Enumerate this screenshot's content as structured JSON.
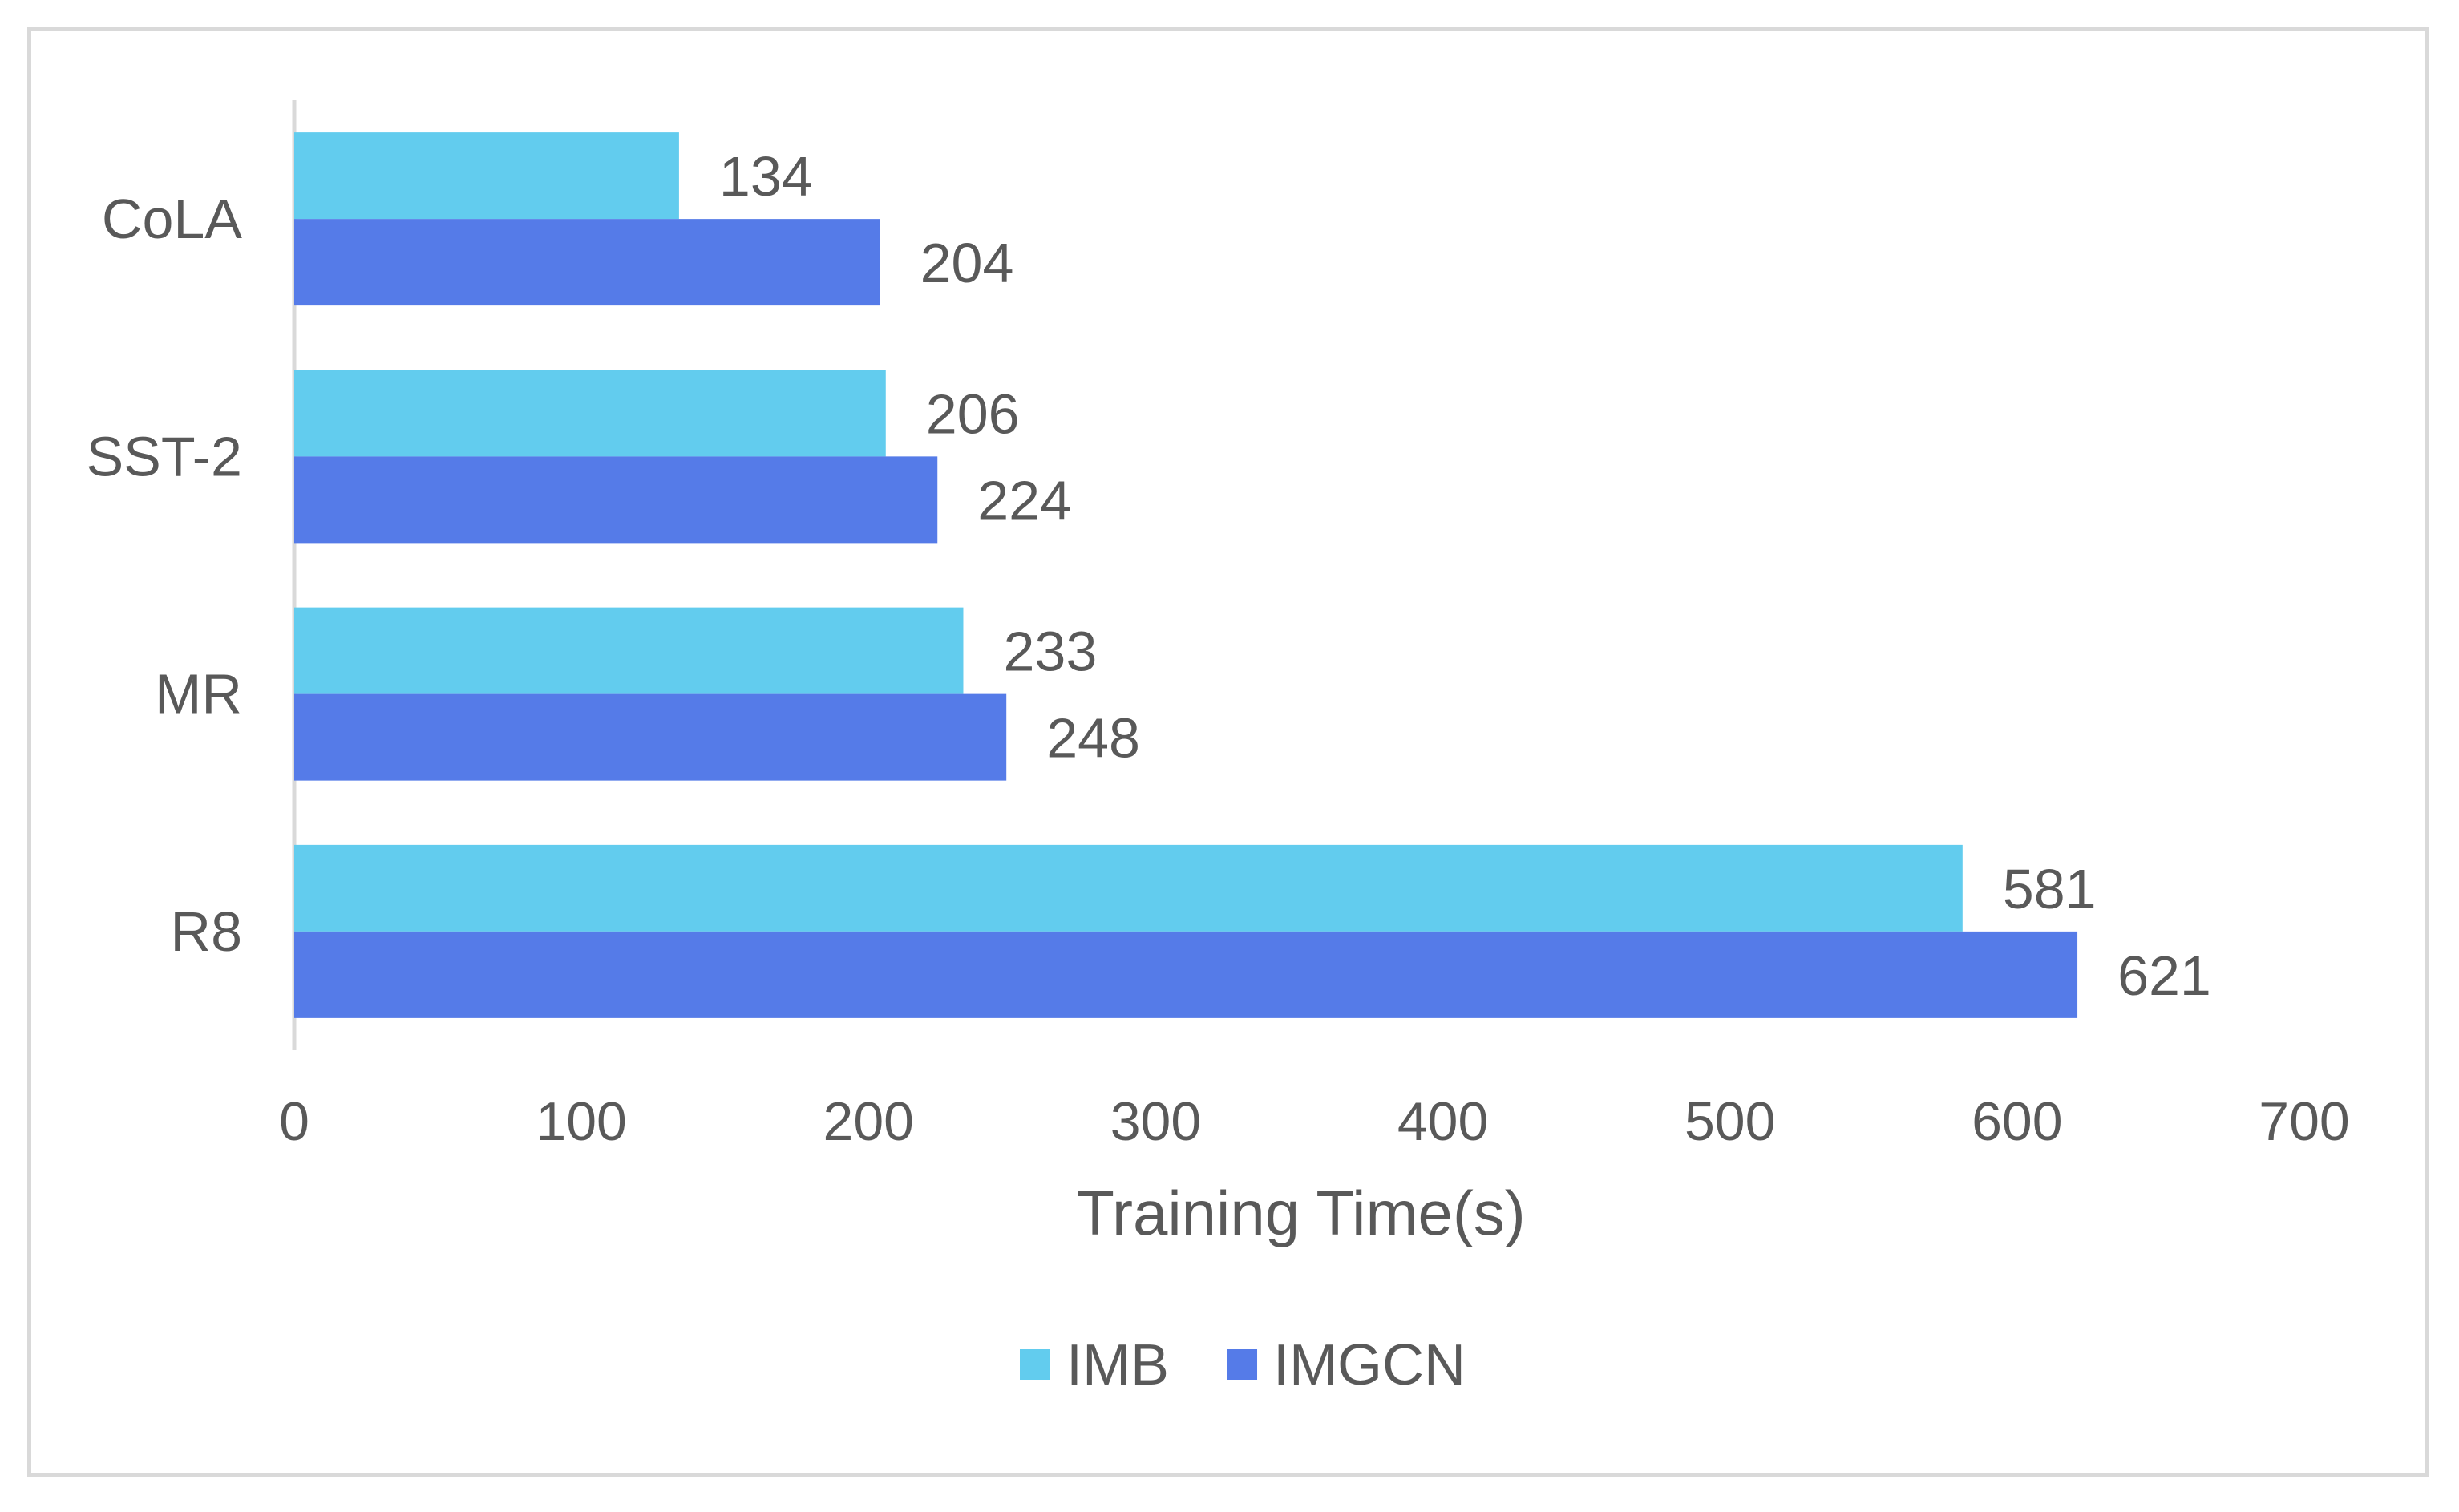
{
  "chart_data": {
    "type": "bar",
    "orientation": "horizontal",
    "categories": [
      "CoLA",
      "SST-2",
      "MR",
      "R8"
    ],
    "series": [
      {
        "name": "IMB",
        "values": [
          134,
          206,
          233,
          581
        ],
        "color": "#62ccee"
      },
      {
        "name": "IMGCN",
        "values": [
          204,
          224,
          248,
          621
        ],
        "color": "#557be8"
      }
    ],
    "title": "",
    "xlabel": "Training Time(s)",
    "ylabel": "",
    "xlim": [
      0,
      700
    ],
    "xticks": [
      0,
      100,
      200,
      300,
      400,
      500,
      600,
      700
    ],
    "grid": false,
    "legend_position": "bottom",
    "data_labels": true
  }
}
